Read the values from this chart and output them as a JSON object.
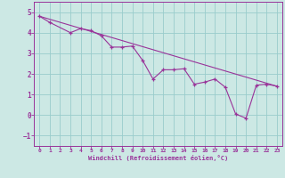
{
  "xlabel": "Windchill (Refroidissement éolien,°C)",
  "bg_color": "#cce8e4",
  "grid_color": "#99cccc",
  "line_color": "#993399",
  "spine_color": "#993399",
  "xlim": [
    -0.5,
    23.5
  ],
  "ylim": [
    -1.5,
    5.5
  ],
  "xticks": [
    0,
    1,
    2,
    3,
    4,
    5,
    6,
    7,
    8,
    9,
    10,
    11,
    12,
    13,
    14,
    15,
    16,
    17,
    18,
    19,
    20,
    21,
    22,
    23
  ],
  "yticks": [
    -1,
    0,
    1,
    2,
    3,
    4,
    5
  ],
  "line1_x": [
    0,
    1,
    3,
    4,
    5,
    6,
    7,
    8,
    9,
    10,
    11,
    12,
    13,
    14,
    15,
    16,
    17,
    18,
    19,
    20,
    21,
    22,
    23
  ],
  "line1_y": [
    4.8,
    4.5,
    4.0,
    4.2,
    4.1,
    3.85,
    3.3,
    3.3,
    3.35,
    2.65,
    1.75,
    2.2,
    2.2,
    2.25,
    1.5,
    1.6,
    1.75,
    1.35,
    0.05,
    -0.15,
    1.45,
    1.5,
    1.4
  ],
  "line2_x": [
    0,
    23
  ],
  "line2_y": [
    4.8,
    1.4
  ]
}
